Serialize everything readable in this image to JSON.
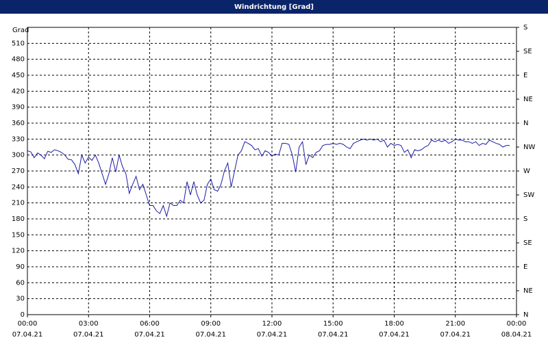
{
  "chart_data": {
    "type": "line",
    "title": "Windrichtung [Grad]",
    "ylabel": "Grad",
    "x": [
      0,
      10,
      20,
      30,
      40,
      50,
      60,
      70,
      80,
      90,
      100,
      110,
      120,
      130,
      140,
      150,
      160,
      170,
      180,
      190,
      200,
      210,
      220,
      230,
      240,
      250,
      260,
      270,
      280,
      290,
      300,
      310,
      320,
      330,
      340,
      350,
      360,
      370,
      380,
      390,
      400,
      410,
      420,
      430,
      440,
      450,
      460,
      470,
      480,
      490,
      500,
      510,
      520,
      530,
      540,
      550,
      560,
      570,
      580,
      590,
      600,
      610,
      620,
      630,
      640,
      650,
      660,
      670,
      680,
      690,
      700,
      710,
      720,
      730,
      740,
      750,
      760,
      770,
      780,
      790,
      800,
      810,
      820,
      830,
      840,
      850,
      860,
      870,
      880,
      890,
      900,
      910,
      920,
      930,
      940,
      950,
      960,
      970,
      980,
      990,
      1000,
      1010,
      1020,
      1030,
      1040,
      1050,
      1060,
      1070,
      1080,
      1090,
      1100,
      1110,
      1120,
      1130,
      1140,
      1150,
      1160,
      1170,
      1180,
      1190,
      1200,
      1210,
      1220,
      1230,
      1240,
      1250,
      1260,
      1270,
      1280,
      1290,
      1300,
      1310,
      1320,
      1330,
      1340,
      1350,
      1360,
      1370,
      1380,
      1390,
      1400,
      1410,
      1420
    ],
    "series": [
      {
        "color": "#1a1aa6",
        "values": [
          308,
          306,
          295,
          304,
          300,
          293,
          307,
          305,
          310,
          308,
          305,
          300,
          292,
          291,
          282,
          265,
          300,
          285,
          296,
          290,
          300,
          285,
          265,
          245,
          265,
          295,
          268,
          300,
          278,
          265,
          228,
          245,
          260,
          235,
          245,
          225,
          205,
          205,
          195,
          190,
          205,
          185,
          210,
          205,
          205,
          215,
          210,
          250,
          225,
          250,
          225,
          210,
          215,
          245,
          255,
          235,
          232,
          245,
          270,
          285,
          240,
          270,
          300,
          308,
          325,
          322,
          318,
          310,
          312,
          298,
          308,
          305,
          298,
          302,
          300,
          322,
          322,
          320,
          300,
          268,
          315,
          325,
          282,
          300,
          295,
          305,
          308,
          318,
          320,
          320,
          322,
          320,
          322,
          320,
          315,
          312,
          322,
          325,
          328,
          330,
          328,
          330,
          328,
          330,
          325,
          328,
          315,
          322,
          318,
          320,
          318,
          305,
          310,
          295,
          310,
          308,
          310,
          315,
          318,
          328,
          325,
          328,
          325,
          328,
          322,
          325,
          330,
          328,
          328,
          325,
          325,
          322,
          325,
          318,
          322,
          320,
          328,
          325,
          322,
          320,
          315,
          318,
          318
        ]
      }
    ],
    "xlim": [
      0,
      1440
    ],
    "xticks": [
      {
        "value": 0,
        "label": "00:00"
      },
      {
        "value": 180,
        "label": "03:00"
      },
      {
        "value": 360,
        "label": "06:00"
      },
      {
        "value": 540,
        "label": "09:00"
      },
      {
        "value": 720,
        "label": "12:00"
      },
      {
        "value": 900,
        "label": "15:00"
      },
      {
        "value": 1080,
        "label": "18:00"
      },
      {
        "value": 1260,
        "label": "21:00"
      },
      {
        "value": 1440,
        "label": "00:00"
      }
    ],
    "xtick_dates": [
      "07.04.21",
      "07.04.21",
      "07.04.21",
      "07.04.21",
      "07.04.21",
      "07.04.21",
      "07.04.21",
      "07.04.21",
      "08.04.21"
    ],
    "ylim": [
      0,
      540
    ],
    "yticks": [
      0,
      30,
      60,
      90,
      120,
      150,
      180,
      210,
      240,
      270,
      300,
      330,
      360,
      390,
      420,
      450,
      480,
      510
    ],
    "y2lim": [
      0,
      540
    ],
    "y2ticks": [
      {
        "value": 0,
        "label": "N"
      },
      {
        "value": 45,
        "label": "NE"
      },
      {
        "value": 90,
        "label": "E"
      },
      {
        "value": 135,
        "label": "SE"
      },
      {
        "value": 180,
        "label": "S"
      },
      {
        "value": 225,
        "label": "SW"
      },
      {
        "value": 270,
        "label": "W"
      },
      {
        "value": 315,
        "label": "NW"
      },
      {
        "value": 360,
        "label": "N"
      },
      {
        "value": 405,
        "label": "NE"
      },
      {
        "value": 450,
        "label": "E"
      },
      {
        "value": 495,
        "label": "SE"
      },
      {
        "value": 540,
        "label": "S"
      }
    ],
    "grid": true
  }
}
